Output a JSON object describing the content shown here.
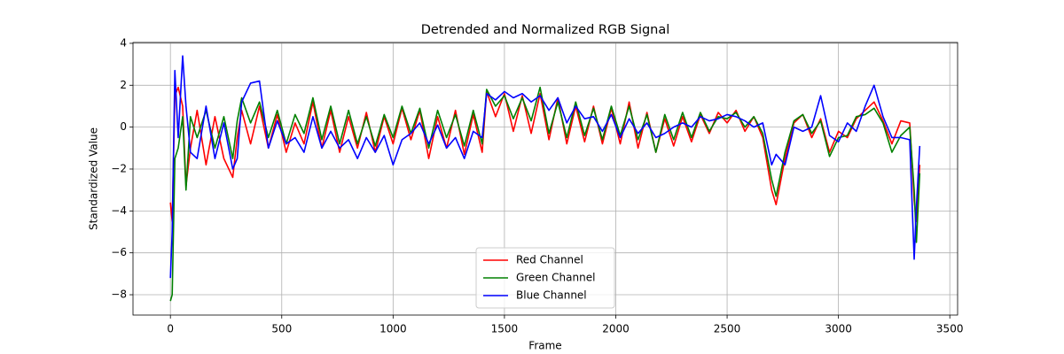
{
  "chart_data": {
    "type": "line",
    "title": "Detrended and Normalized RGB Signal",
    "x_label": "Frame",
    "y_label": "Standardized Value",
    "x": [
      0,
      8,
      20,
      35,
      55,
      70,
      90,
      120,
      160,
      200,
      240,
      280,
      300,
      320,
      360,
      400,
      440,
      480,
      520,
      560,
      600,
      640,
      680,
      720,
      760,
      800,
      840,
      880,
      920,
      960,
      1000,
      1040,
      1080,
      1120,
      1160,
      1200,
      1240,
      1280,
      1320,
      1360,
      1400,
      1420,
      1460,
      1500,
      1540,
      1580,
      1620,
      1660,
      1700,
      1740,
      1780,
      1820,
      1860,
      1900,
      1940,
      1980,
      2020,
      2060,
      2100,
      2140,
      2180,
      2220,
      2260,
      2300,
      2340,
      2380,
      2420,
      2460,
      2500,
      2540,
      2580,
      2620,
      2660,
      2700,
      2720,
      2760,
      2800,
      2840,
      2880,
      2920,
      2960,
      3000,
      3040,
      3080,
      3120,
      3160,
      3200,
      3240,
      3280,
      3320,
      3340,
      3350,
      3365
    ],
    "series": [
      {
        "name": "Red Channel",
        "color": "#ff0000",
        "values": [
          -3.6,
          -4.5,
          1.5,
          1.9,
          1.0,
          -2.8,
          -1.0,
          0.8,
          -1.8,
          0.5,
          -1.5,
          -2.4,
          -0.5,
          0.8,
          -0.8,
          1.0,
          -1.0,
          0.6,
          -1.2,
          0.2,
          -0.8,
          1.2,
          -1.0,
          0.8,
          -1.2,
          0.5,
          -1.0,
          0.7,
          -1.2,
          0.5,
          -0.8,
          0.9,
          -0.6,
          0.8,
          -1.5,
          0.5,
          -1.0,
          0.8,
          -1.3,
          0.6,
          -1.2,
          1.7,
          0.5,
          1.6,
          -0.2,
          1.5,
          -0.3,
          1.6,
          -0.6,
          1.4,
          -0.8,
          1.0,
          -0.7,
          1.0,
          -0.8,
          0.9,
          -0.8,
          1.2,
          -1.0,
          0.7,
          -1.2,
          0.4,
          -0.9,
          0.5,
          -0.7,
          0.6,
          -0.3,
          0.7,
          0.2,
          0.8,
          -0.2,
          0.5,
          -0.5,
          -3.0,
          -3.7,
          -1.5,
          0.2,
          0.6,
          -0.5,
          0.4,
          -1.2,
          -0.2,
          -0.5,
          0.4,
          0.8,
          1.2,
          0.3,
          -0.8,
          0.3,
          0.2,
          -3.5,
          -4.5,
          -1.8
        ]
      },
      {
        "name": "Green Channel",
        "color": "#008000",
        "values": [
          -8.3,
          -8.0,
          -1.5,
          -1.0,
          0.5,
          -3.0,
          0.5,
          -0.5,
          0.8,
          -1.0,
          0.5,
          -1.5,
          0.3,
          1.4,
          0.2,
          1.2,
          -0.5,
          0.8,
          -0.8,
          0.6,
          -0.3,
          1.4,
          -0.6,
          1.0,
          -0.8,
          0.8,
          -0.8,
          0.5,
          -0.9,
          0.6,
          -0.5,
          1.0,
          -0.3,
          0.9,
          -1.0,
          0.8,
          -0.5,
          0.6,
          -0.9,
          0.8,
          -0.8,
          1.8,
          1.0,
          1.5,
          0.4,
          1.4,
          0.3,
          1.9,
          -0.3,
          1.2,
          -0.5,
          1.2,
          -0.4,
          0.9,
          -0.6,
          1.0,
          -0.4,
          1.0,
          -0.6,
          0.6,
          -1.2,
          0.6,
          -0.6,
          0.7,
          -0.5,
          0.7,
          -0.2,
          0.5,
          0.4,
          0.7,
          0.0,
          0.5,
          -0.3,
          -2.5,
          -3.3,
          -1.2,
          0.3,
          0.6,
          -0.3,
          0.3,
          -1.4,
          -0.5,
          -0.4,
          0.5,
          0.6,
          0.9,
          0.2,
          -1.2,
          -0.4,
          0.0,
          -3.0,
          -5.5,
          -2.2
        ]
      },
      {
        "name": "Blue Channel",
        "color": "#0000ff",
        "values": [
          -7.2,
          -5.0,
          2.7,
          -0.5,
          3.4,
          1.0,
          -1.2,
          -1.5,
          1.0,
          -1.5,
          0.2,
          -2.0,
          -1.5,
          1.2,
          2.1,
          2.2,
          -1.0,
          0.3,
          -0.8,
          -0.5,
          -1.2,
          0.5,
          -1.0,
          -0.2,
          -1.0,
          -0.6,
          -1.5,
          -0.5,
          -1.2,
          -0.4,
          -1.8,
          -0.6,
          -0.3,
          0.2,
          -0.8,
          0.1,
          -1.0,
          -0.5,
          -1.5,
          -0.2,
          -0.5,
          1.6,
          1.3,
          1.7,
          1.4,
          1.6,
          1.2,
          1.5,
          0.8,
          1.4,
          0.2,
          1.0,
          0.4,
          0.5,
          -0.2,
          0.6,
          -0.5,
          0.4,
          -0.3,
          0.2,
          -0.5,
          -0.3,
          0.0,
          0.2,
          0.0,
          0.5,
          0.3,
          0.4,
          0.6,
          0.5,
          0.3,
          0.0,
          0.2,
          -1.8,
          -1.3,
          -1.8,
          0.0,
          -0.2,
          0.0,
          1.5,
          -0.4,
          -0.7,
          0.2,
          -0.2,
          1.0,
          2.0,
          0.5,
          -0.5,
          -0.5,
          -0.6,
          -6.3,
          -3.8,
          -0.9
        ]
      }
    ],
    "xlim": [
      -168,
      3535
    ],
    "ylim": [
      -8.97,
      4.04
    ],
    "xticks": [
      0,
      500,
      1000,
      1500,
      2000,
      2500,
      3000,
      3500
    ],
    "yticks": [
      {
        "value": -8,
        "label": "−8"
      },
      {
        "value": -6,
        "label": "−6"
      },
      {
        "value": -4,
        "label": "−4"
      },
      {
        "value": -2,
        "label": "−2"
      },
      0,
      2,
      4
    ],
    "grid": true,
    "legend": "lower center"
  }
}
